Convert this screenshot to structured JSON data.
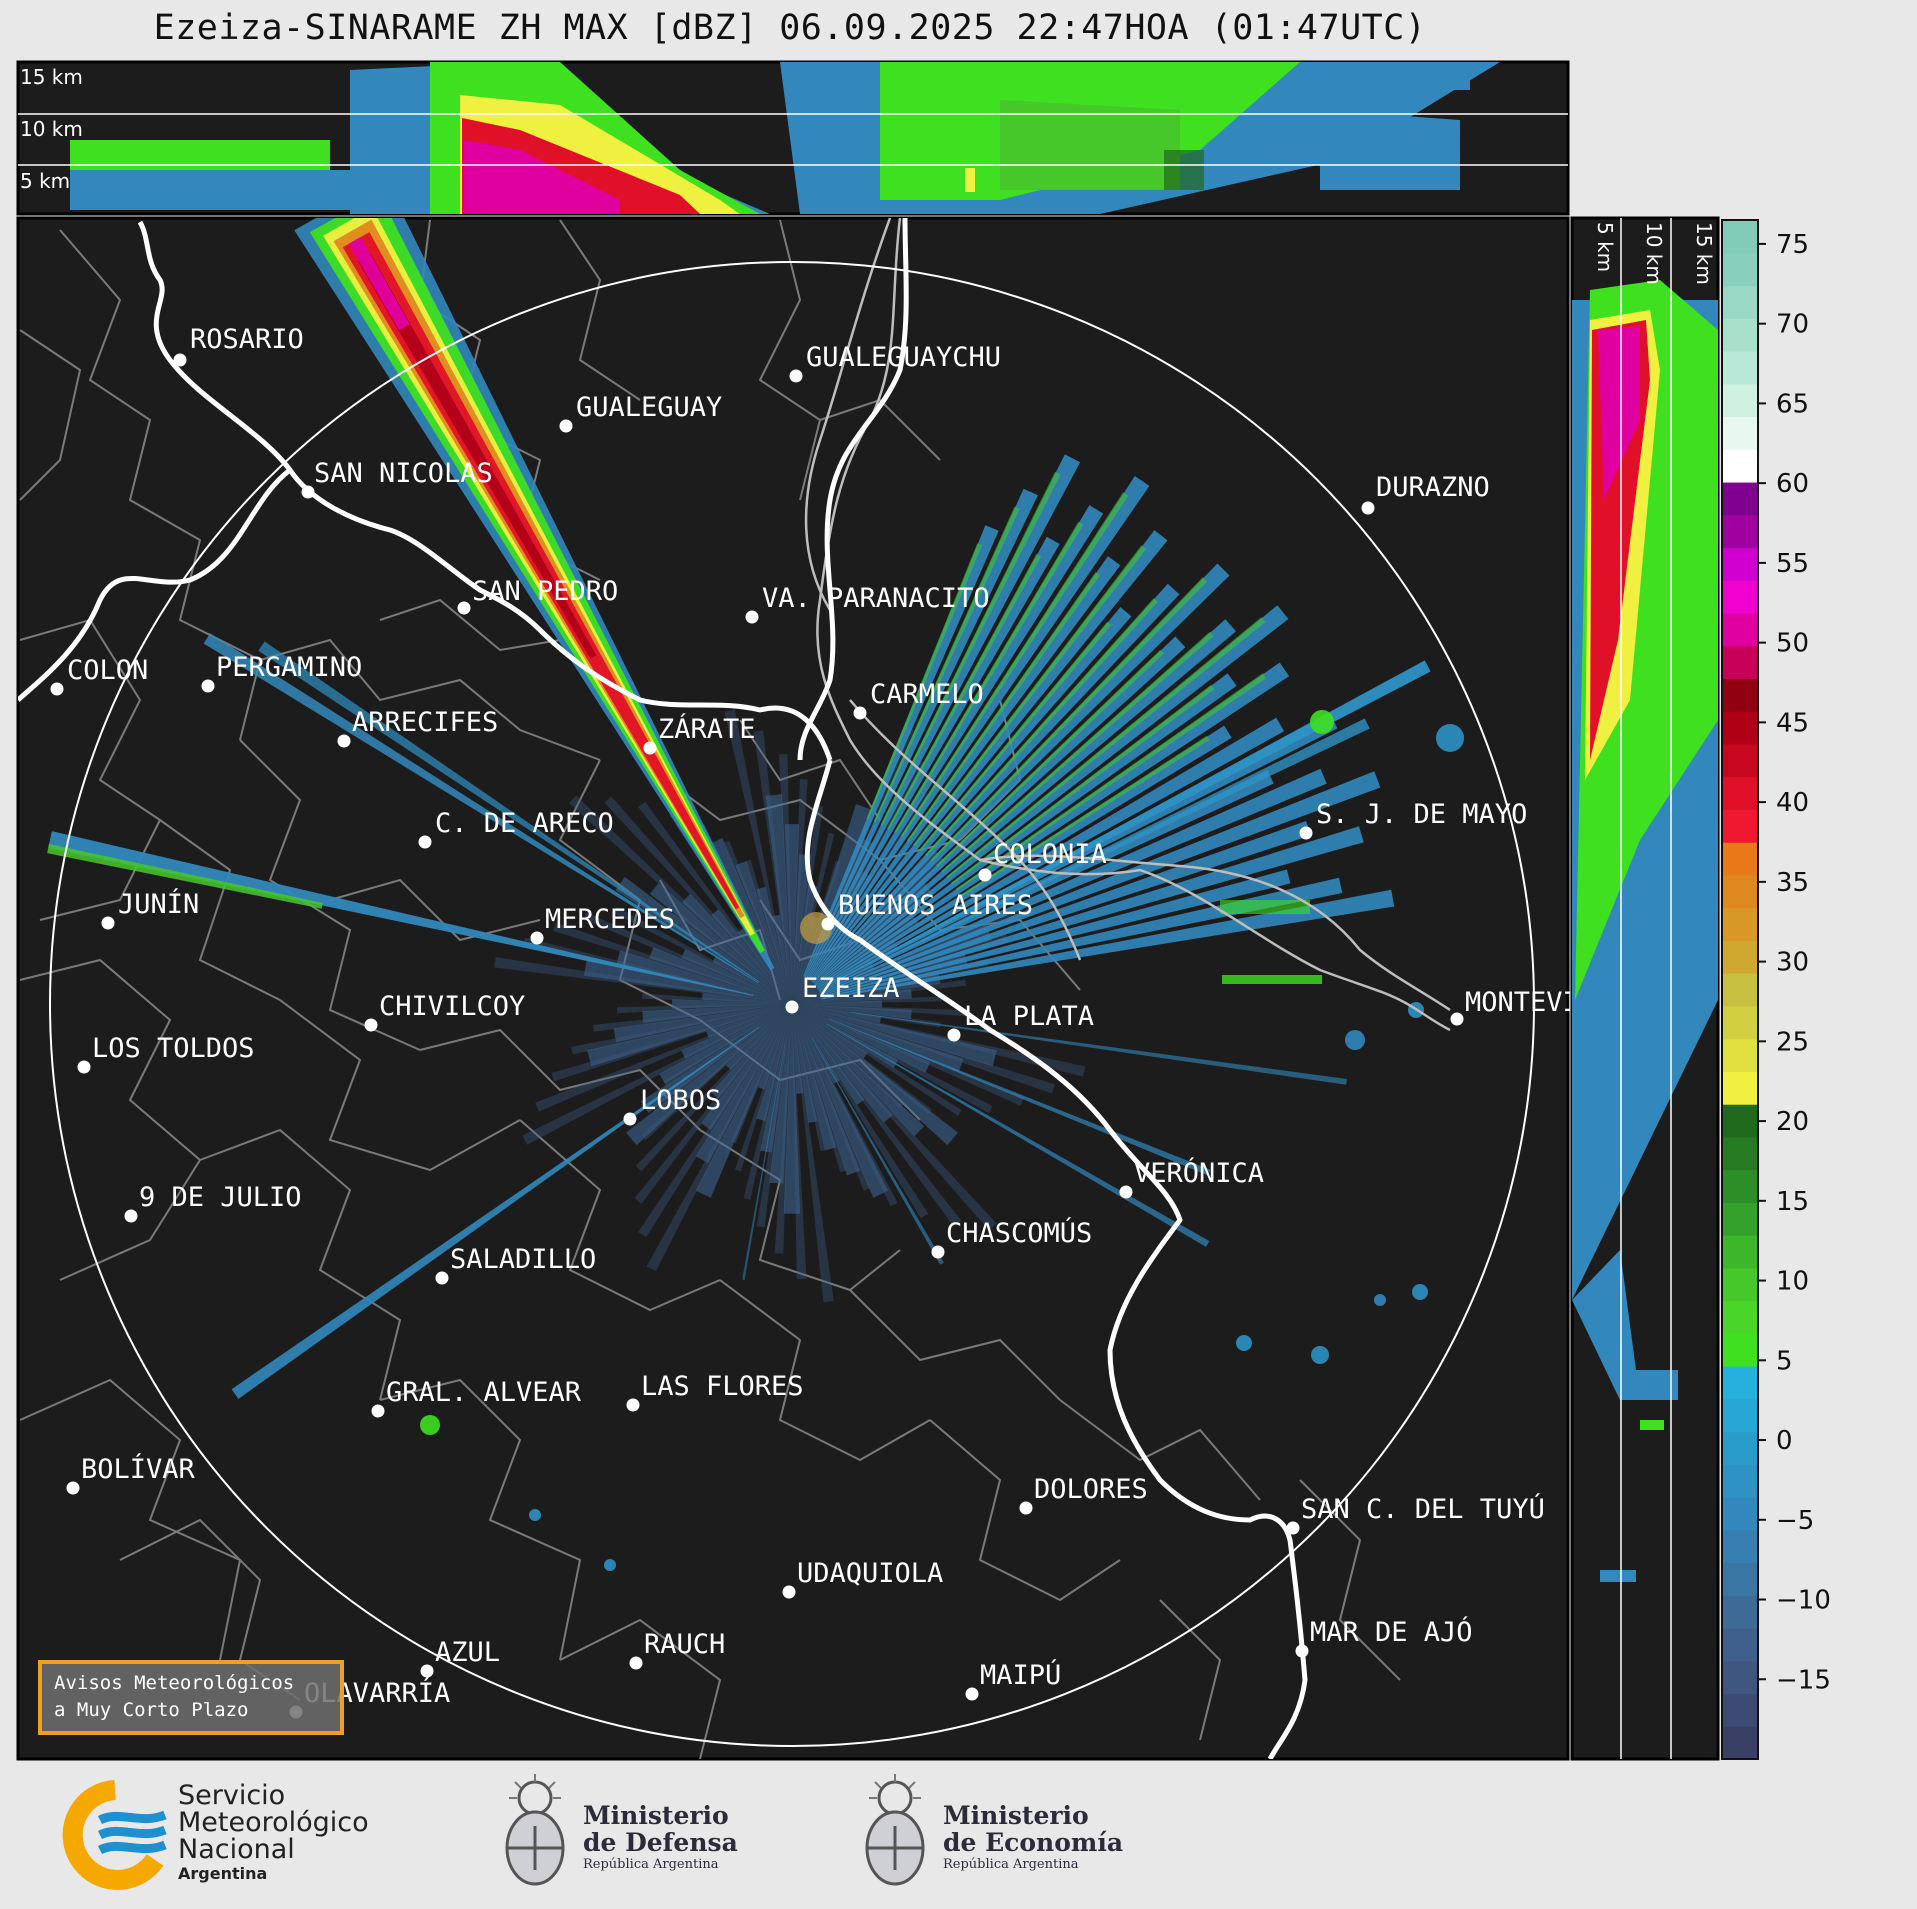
{
  "title": "Ezeiza-SINARAME ZH MAX [dBZ] 06.09.2025 22:47HOA (01:47UTC)",
  "top_panel": {
    "labels": [
      "15 km",
      "10 km",
      "5 km"
    ]
  },
  "side_panel": {
    "labels": [
      "5 km",
      "10 km",
      "15 km"
    ]
  },
  "colorbar": {
    "ticks": [
      "75",
      "70",
      "65",
      "60",
      "55",
      "50",
      "45",
      "40",
      "35",
      "30",
      "25",
      "20",
      "15",
      "10",
      "5",
      "0",
      "−5",
      "−10",
      "−15"
    ],
    "range": [
      -20,
      76.5
    ]
  },
  "cities": [
    {
      "name": "ROSARIO"
    },
    {
      "name": "GUALEGUAYCHU"
    },
    {
      "name": "GUALEGUAY"
    },
    {
      "name": "SAN NICOLAS"
    },
    {
      "name": "DURAZNO"
    },
    {
      "name": "SAN PEDRO"
    },
    {
      "name": "VA. PARANACITO"
    },
    {
      "name": "COLON"
    },
    {
      "name": "PERGAMINO"
    },
    {
      "name": "CARMELO"
    },
    {
      "name": "ARRECIFES"
    },
    {
      "name": "ZÁRATE"
    },
    {
      "name": "S. J. DE MAYO"
    },
    {
      "name": "C. DE ARECO"
    },
    {
      "name": "COLONIA"
    },
    {
      "name": "JUNÍN"
    },
    {
      "name": "BUENOS AIRES"
    },
    {
      "name": "MERCEDES"
    },
    {
      "name": "MONTEVIDEO"
    },
    {
      "name": "EZEIZA"
    },
    {
      "name": "CHIVILCOY"
    },
    {
      "name": "LA PLATA"
    },
    {
      "name": "LOS TOLDOS"
    },
    {
      "name": "LOBOS"
    },
    {
      "name": "VERÓNICA"
    },
    {
      "name": "9 DE JULIO"
    },
    {
      "name": "CHASCOMÚS"
    },
    {
      "name": "SALADILLO"
    },
    {
      "name": "GRAL. ALVEAR"
    },
    {
      "name": "LAS FLORES"
    },
    {
      "name": "BOLÍVAR"
    },
    {
      "name": "DOLORES"
    },
    {
      "name": "SAN C. DEL TUYÚ"
    },
    {
      "name": "UDAQUIOLA"
    },
    {
      "name": "MAR DE AJÓ"
    },
    {
      "name": "AZUL"
    },
    {
      "name": "RAUCH"
    },
    {
      "name": "OLAVARRÍA"
    },
    {
      "name": "MAIPÚ"
    }
  ],
  "avisos": {
    "line1": "Avisos Meteorológicos",
    "line2": "a Muy Corto Plazo"
  },
  "logos": {
    "smn": {
      "line1": "Servicio",
      "line2": "Meteorológico",
      "line3": "Nacional",
      "line4": "Argentina"
    },
    "defensa": {
      "line1": "Ministerio",
      "line2": "de Defensa",
      "line3": "República Argentina"
    },
    "economia": {
      "line1": "Ministerio",
      "line2": "de Economía",
      "line3": "República Argentina"
    }
  },
  "colors": {
    "background": "#1c1c1c",
    "ring": "#ffffff",
    "accent_orange": "#f0a020",
    "smn_blue": "#1e90d0",
    "smn_yellow": "#f5a800"
  }
}
